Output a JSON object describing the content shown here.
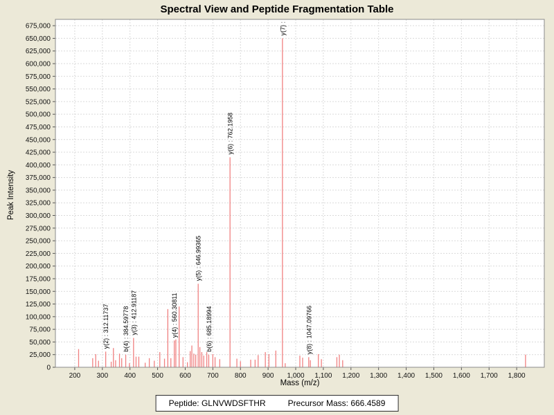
{
  "title": "Spectral View and Peptide Fragmentation Table",
  "footer": {
    "peptide_label": "Peptide: GLNVWDSFTHR",
    "precursor_label": "Precursor Mass: 666.4589"
  },
  "colors": {
    "background": "#ECE9D8",
    "plot_background": "#FFFFFF",
    "peak": "#F08080",
    "grid": "#D9D9D9",
    "border": "#8A8A8A",
    "tick": "#555555",
    "text": "#111111"
  },
  "chart_data": {
    "type": "bar",
    "title": "Spectral View and Peptide Fragmentation Table",
    "xlabel": "Mass (m/z)",
    "ylabel": "Peak Intensity",
    "xlim": [
      130,
      1900
    ],
    "ylim": [
      0,
      687500
    ],
    "grid": true,
    "x_ticks": [
      200,
      300,
      400,
      500,
      600,
      700,
      800,
      900,
      1000,
      1100,
      1200,
      1300,
      1400,
      1500,
      1600,
      1700,
      1800
    ],
    "y_ticks": [
      0,
      25000,
      50000,
      75000,
      100000,
      125000,
      150000,
      175000,
      200000,
      225000,
      250000,
      275000,
      300000,
      325000,
      350000,
      375000,
      400000,
      425000,
      450000,
      475000,
      500000,
      525000,
      550000,
      575000,
      600000,
      625000,
      650000,
      675000
    ],
    "annotations": [
      "y(2) : 312.11737",
      "b(4) : 384.59778",
      "y(3) : 412.91187",
      "y(4) : 560.30811",
      "y(5) : 646.99365",
      "b(6) : 685.18994",
      "y(6) : 762.1958",
      "y(7) :",
      "y(8) : 1047.09766"
    ],
    "peaks": [
      {
        "mz": 214,
        "intensity": 36000
      },
      {
        "mz": 265,
        "intensity": 18000
      },
      {
        "mz": 276,
        "intensity": 26000
      },
      {
        "mz": 286,
        "intensity": 13000
      },
      {
        "mz": 312.11737,
        "intensity": 31000,
        "label": "y(2) : 312.11737"
      },
      {
        "mz": 332,
        "intensity": 11000
      },
      {
        "mz": 340,
        "intensity": 38000
      },
      {
        "mz": 348,
        "intensity": 14000
      },
      {
        "mz": 362,
        "intensity": 27000
      },
      {
        "mz": 370,
        "intensity": 18000
      },
      {
        "mz": 384.59778,
        "intensity": 25000,
        "label": "b(4) : 384.59778"
      },
      {
        "mz": 398,
        "intensity": 8000
      },
      {
        "mz": 412.91187,
        "intensity": 58000,
        "label": "y(3) : 412.91187"
      },
      {
        "mz": 422,
        "intensity": 21000
      },
      {
        "mz": 432,
        "intensity": 21000
      },
      {
        "mz": 455,
        "intensity": 9000
      },
      {
        "mz": 470,
        "intensity": 18000
      },
      {
        "mz": 488,
        "intensity": 13000
      },
      {
        "mz": 508,
        "intensity": 30000
      },
      {
        "mz": 525,
        "intensity": 17000
      },
      {
        "mz": 537,
        "intensity": 115000
      },
      {
        "mz": 548,
        "intensity": 18000
      },
      {
        "mz": 560.30811,
        "intensity": 53000,
        "label": "y(4) : 560.30811"
      },
      {
        "mz": 566,
        "intensity": 55000
      },
      {
        "mz": 578,
        "intensity": 120000
      },
      {
        "mz": 592,
        "intensity": 20000
      },
      {
        "mz": 608,
        "intensity": 10000
      },
      {
        "mz": 618,
        "intensity": 32000
      },
      {
        "mz": 624,
        "intensity": 43000
      },
      {
        "mz": 631,
        "intensity": 27000
      },
      {
        "mz": 638,
        "intensity": 25000
      },
      {
        "mz": 646.99365,
        "intensity": 165000,
        "label": "y(5) : 646.99365"
      },
      {
        "mz": 653,
        "intensity": 40000
      },
      {
        "mz": 660,
        "intensity": 30000
      },
      {
        "mz": 667,
        "intensity": 23000
      },
      {
        "mz": 678,
        "intensity": 30000
      },
      {
        "mz": 685.18994,
        "intensity": 25000,
        "label": "b(6) : 685.18994"
      },
      {
        "mz": 700,
        "intensity": 26000
      },
      {
        "mz": 708,
        "intensity": 20000
      },
      {
        "mz": 725,
        "intensity": 16000
      },
      {
        "mz": 762.1958,
        "intensity": 415000,
        "label": "y(6) : 762.1958"
      },
      {
        "mz": 787,
        "intensity": 17000
      },
      {
        "mz": 800,
        "intensity": 12000
      },
      {
        "mz": 837,
        "intensity": 15000
      },
      {
        "mz": 853,
        "intensity": 15000
      },
      {
        "mz": 864,
        "intensity": 24000
      },
      {
        "mz": 890,
        "intensity": 30000
      },
      {
        "mz": 903,
        "intensity": 26000
      },
      {
        "mz": 928,
        "intensity": 33000
      },
      {
        "mz": 952,
        "intensity": 650000,
        "label": "y(7) :"
      },
      {
        "mz": 962,
        "intensity": 8000
      },
      {
        "mz": 1015,
        "intensity": 23000
      },
      {
        "mz": 1025,
        "intensity": 19000
      },
      {
        "mz": 1047.09766,
        "intensity": 20000,
        "label": "y(8) : 1047.09766"
      },
      {
        "mz": 1053,
        "intensity": 14000
      },
      {
        "mz": 1082,
        "intensity": 26000
      },
      {
        "mz": 1093,
        "intensity": 16000
      },
      {
        "mz": 1149,
        "intensity": 20000
      },
      {
        "mz": 1158,
        "intensity": 25000
      },
      {
        "mz": 1170,
        "intensity": 14000
      },
      {
        "mz": 1832,
        "intensity": 25000
      }
    ]
  }
}
